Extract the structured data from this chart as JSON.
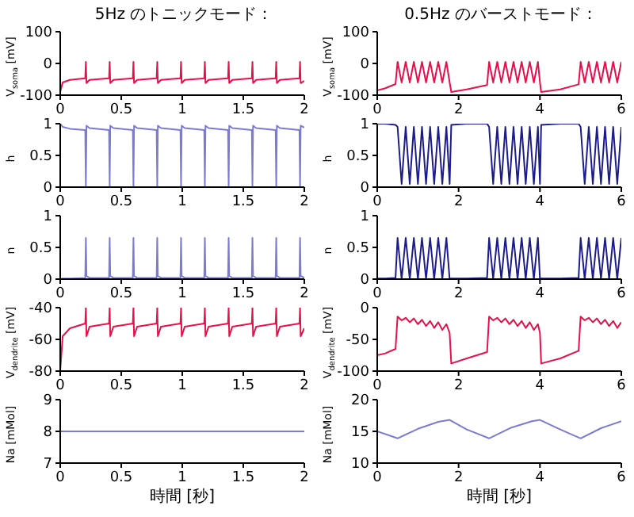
{
  "chart_data": [
    {
      "type": "line",
      "title": "5Hz のトニックモード：",
      "ylabel": "V$_{soma}$ [mV]",
      "color": "#e8104a",
      "xlim": [
        0,
        2
      ],
      "xticks": [
        0,
        0.5,
        1,
        1.5,
        2
      ],
      "ylim": [
        -100,
        100
      ],
      "yticks": [
        -100,
        0,
        100
      ],
      "x": [
        0,
        0.02,
        0.08,
        0.205,
        0.21,
        0.215,
        0.24,
        0.4,
        0.405,
        0.41,
        0.435,
        0.595,
        0.6,
        0.605,
        0.63,
        0.79,
        0.795,
        0.8,
        0.825,
        0.985,
        0.99,
        0.995,
        1.02,
        1.18,
        1.185,
        1.19,
        1.215,
        1.375,
        1.38,
        1.385,
        1.41,
        1.57,
        1.575,
        1.58,
        1.605,
        1.765,
        1.77,
        1.775,
        1.8,
        1.96,
        1.965,
        1.97,
        2.0
      ],
      "values": [
        -90,
        -60,
        -52,
        -47,
        5,
        -62,
        -52,
        -47,
        5,
        -62,
        -52,
        -47,
        5,
        -62,
        -52,
        -47,
        5,
        -62,
        -52,
        -47,
        5,
        -62,
        -52,
        -47,
        5,
        -62,
        -52,
        -47,
        5,
        -62,
        -52,
        -47,
        5,
        -62,
        -52,
        -47,
        5,
        -62,
        -52,
        -47,
        5,
        -62,
        -55
      ]
    },
    {
      "type": "line",
      "title": "0.5Hz のバーストモード：",
      "ylabel": "V$_{soma}$ [mV]",
      "color": "#e8104a",
      "xlim": [
        0,
        6
      ],
      "xticks": [
        0,
        2,
        4,
        6
      ],
      "ylim": [
        -100,
        100
      ],
      "yticks": [
        -100,
        0,
        100
      ],
      "x": [
        0,
        0.2,
        0.45,
        0.5,
        0.6,
        0.7,
        0.8,
        0.9,
        1.0,
        1.1,
        1.2,
        1.3,
        1.4,
        1.5,
        1.6,
        1.7,
        1.78,
        1.82,
        2.2,
        2.7,
        2.75,
        2.85,
        2.95,
        3.05,
        3.15,
        3.25,
        3.35,
        3.45,
        3.55,
        3.65,
        3.75,
        3.85,
        3.95,
        4.0,
        4.03,
        4.5,
        4.95,
        5.0,
        5.1,
        5.2,
        5.3,
        5.4,
        5.5,
        5.6,
        5.7,
        5.8,
        5.9,
        6.0
      ],
      "values": [
        -85,
        -78,
        -65,
        5,
        -60,
        5,
        -60,
        5,
        -60,
        5,
        -60,
        5,
        -60,
        5,
        -60,
        5,
        -60,
        -90,
        -82,
        -68,
        5,
        -60,
        5,
        -60,
        5,
        -60,
        5,
        -60,
        5,
        -60,
        5,
        -60,
        5,
        -60,
        -90,
        -82,
        -66,
        5,
        -60,
        5,
        -60,
        5,
        -60,
        5,
        -60,
        5,
        -60,
        5
      ]
    },
    {
      "type": "line",
      "ylabel": "h",
      "color": "#7b7bd6",
      "xlim": [
        0,
        2
      ],
      "xticks": [
        0,
        0.5,
        1,
        1.5,
        2
      ],
      "ylim": [
        0,
        1
      ],
      "yticks": [
        0,
        0.5,
        1
      ],
      "x": [
        0,
        0.02,
        0.08,
        0.205,
        0.21,
        0.215,
        0.24,
        0.4,
        0.405,
        0.41,
        0.435,
        0.595,
        0.6,
        0.605,
        0.63,
        0.79,
        0.795,
        0.8,
        0.825,
        0.985,
        0.99,
        0.995,
        1.02,
        1.18,
        1.185,
        1.19,
        1.215,
        1.375,
        1.38,
        1.385,
        1.41,
        1.57,
        1.575,
        1.58,
        1.605,
        1.765,
        1.77,
        1.775,
        1.8,
        1.96,
        1.965,
        1.97,
        2.0
      ],
      "values": [
        1,
        0.95,
        0.92,
        0.9,
        0.02,
        0.97,
        0.93,
        0.9,
        0.02,
        0.97,
        0.93,
        0.9,
        0.02,
        0.97,
        0.93,
        0.9,
        0.02,
        0.97,
        0.93,
        0.9,
        0.02,
        0.97,
        0.93,
        0.9,
        0.02,
        0.97,
        0.93,
        0.9,
        0.02,
        0.97,
        0.93,
        0.9,
        0.02,
        0.97,
        0.93,
        0.9,
        0.02,
        0.97,
        0.93,
        0.9,
        0.02,
        0.97,
        0.94
      ]
    },
    {
      "type": "line",
      "ylabel": "h",
      "color": "#1c1c8c",
      "xlim": [
        0,
        6
      ],
      "xticks": [
        0,
        2,
        4,
        6
      ],
      "ylim": [
        0,
        1
      ],
      "yticks": [
        0,
        0.5,
        1
      ],
      "x": [
        0,
        0.2,
        0.45,
        0.5,
        0.6,
        0.7,
        0.8,
        0.9,
        1.0,
        1.1,
        1.2,
        1.3,
        1.4,
        1.5,
        1.6,
        1.7,
        1.78,
        1.82,
        2.2,
        2.7,
        2.75,
        2.85,
        2.95,
        3.05,
        3.15,
        3.25,
        3.35,
        3.45,
        3.55,
        3.65,
        3.75,
        3.85,
        3.95,
        4.0,
        4.03,
        4.5,
        4.95,
        5.0,
        5.1,
        5.2,
        5.3,
        5.4,
        5.5,
        5.6,
        5.7,
        5.8,
        5.9,
        6.0
      ],
      "values": [
        1,
        1,
        0.98,
        0.95,
        0.05,
        0.95,
        0.05,
        0.95,
        0.05,
        0.95,
        0.05,
        0.95,
        0.05,
        0.95,
        0.05,
        0.95,
        0.05,
        0.98,
        1,
        1,
        0.95,
        0.05,
        0.95,
        0.05,
        0.95,
        0.05,
        0.95,
        0.05,
        0.95,
        0.05,
        0.95,
        0.05,
        0.95,
        0.05,
        0.98,
        1,
        1,
        0.95,
        0.05,
        0.95,
        0.05,
        0.95,
        0.05,
        0.95,
        0.05,
        0.95,
        0.05,
        0.95
      ]
    },
    {
      "type": "line",
      "ylabel": "n",
      "color": "#7b7bd6",
      "xlim": [
        0,
        2
      ],
      "xticks": [
        0,
        0.5,
        1,
        1.5,
        2
      ],
      "ylim": [
        0,
        1
      ],
      "yticks": [
        0,
        0.5,
        1
      ],
      "x": [
        0,
        0.02,
        0.08,
        0.205,
        0.21,
        0.215,
        0.24,
        0.4,
        0.405,
        0.41,
        0.435,
        0.595,
        0.6,
        0.605,
        0.63,
        0.79,
        0.795,
        0.8,
        0.825,
        0.985,
        0.99,
        0.995,
        1.02,
        1.18,
        1.185,
        1.19,
        1.215,
        1.375,
        1.38,
        1.385,
        1.41,
        1.57,
        1.575,
        1.58,
        1.605,
        1.765,
        1.77,
        1.775,
        1.8,
        1.96,
        1.965,
        1.97,
        2.0
      ],
      "values": [
        0,
        0.01,
        0.01,
        0.02,
        0.65,
        0.05,
        0.02,
        0.02,
        0.65,
        0.05,
        0.02,
        0.02,
        0.65,
        0.05,
        0.02,
        0.02,
        0.65,
        0.05,
        0.02,
        0.02,
        0.65,
        0.05,
        0.02,
        0.02,
        0.65,
        0.05,
        0.02,
        0.02,
        0.65,
        0.05,
        0.02,
        0.02,
        0.65,
        0.05,
        0.02,
        0.02,
        0.65,
        0.05,
        0.02,
        0.02,
        0.65,
        0.05,
        0.02
      ]
    },
    {
      "type": "line",
      "ylabel": "n",
      "color": "#1c1c8c",
      "xlim": [
        0,
        6
      ],
      "xticks": [
        0,
        2,
        4,
        6
      ],
      "ylim": [
        0,
        1
      ],
      "yticks": [
        0,
        0.5,
        1
      ],
      "x": [
        0,
        0.2,
        0.45,
        0.5,
        0.6,
        0.7,
        0.8,
        0.9,
        1.0,
        1.1,
        1.2,
        1.3,
        1.4,
        1.5,
        1.6,
        1.7,
        1.78,
        1.82,
        2.2,
        2.7,
        2.75,
        2.85,
        2.95,
        3.05,
        3.15,
        3.25,
        3.35,
        3.45,
        3.55,
        3.65,
        3.75,
        3.85,
        3.95,
        4.0,
        4.03,
        4.5,
        4.95,
        5.0,
        5.1,
        5.2,
        5.3,
        5.4,
        5.5,
        5.6,
        5.7,
        5.8,
        5.9,
        6.0
      ],
      "values": [
        0.01,
        0.01,
        0.02,
        0.65,
        0,
        0.65,
        0,
        0.65,
        0,
        0.65,
        0,
        0.65,
        0,
        0.65,
        0,
        0.65,
        0,
        0.01,
        0.01,
        0.02,
        0.65,
        0,
        0.65,
        0,
        0.65,
        0,
        0.65,
        0,
        0.65,
        0,
        0.65,
        0,
        0.65,
        0,
        0.01,
        0.01,
        0.02,
        0.65,
        0,
        0.65,
        0,
        0.65,
        0,
        0.65,
        0,
        0.65,
        0,
        0.65
      ]
    },
    {
      "type": "line",
      "ylabel": "V$_{dendrite}$ [mV]",
      "color": "#e8104a",
      "xlim": [
        0,
        2
      ],
      "xticks": [
        0,
        0.5,
        1,
        1.5,
        2
      ],
      "ylim": [
        -80,
        -40
      ],
      "yticks": [
        -80,
        -60,
        -40
      ],
      "x": [
        0,
        0.02,
        0.08,
        0.205,
        0.21,
        0.215,
        0.24,
        0.4,
        0.405,
        0.41,
        0.435,
        0.595,
        0.6,
        0.605,
        0.63,
        0.79,
        0.795,
        0.8,
        0.825,
        0.985,
        0.99,
        0.995,
        1.02,
        1.18,
        1.185,
        1.19,
        1.215,
        1.375,
        1.38,
        1.385,
        1.41,
        1.57,
        1.575,
        1.58,
        1.605,
        1.765,
        1.77,
        1.775,
        1.8,
        1.96,
        1.965,
        1.97,
        2.0
      ],
      "values": [
        -80,
        -58,
        -53,
        -50,
        -40,
        -58,
        -52,
        -50,
        -40,
        -58,
        -52,
        -50,
        -40,
        -58,
        -52,
        -50,
        -40,
        -58,
        -52,
        -50,
        -40,
        -58,
        -52,
        -50,
        -40,
        -58,
        -52,
        -50,
        -40,
        -58,
        -52,
        -50,
        -40,
        -58,
        -52,
        -50,
        -40,
        -58,
        -52,
        -50,
        -40,
        -58,
        -53
      ]
    },
    {
      "type": "line",
      "ylabel": "V$_{dendrite}$ [mV]",
      "color": "#e8104a",
      "xlim": [
        0,
        6
      ],
      "xticks": [
        0,
        2,
        4,
        6
      ],
      "ylim": [
        -100,
        0
      ],
      "yticks": [
        -100,
        -50,
        0
      ],
      "x": [
        0,
        0.2,
        0.45,
        0.5,
        0.6,
        0.7,
        0.8,
        0.9,
        1.0,
        1.1,
        1.2,
        1.3,
        1.4,
        1.5,
        1.6,
        1.7,
        1.78,
        1.82,
        2.2,
        2.7,
        2.75,
        2.85,
        2.95,
        3.05,
        3.15,
        3.25,
        3.35,
        3.45,
        3.55,
        3.65,
        3.75,
        3.85,
        3.95,
        4.0,
        4.03,
        4.5,
        4.95,
        5.0,
        5.1,
        5.2,
        5.3,
        5.4,
        5.5,
        5.6,
        5.7,
        5.8,
        5.9,
        6.0
      ],
      "values": [
        -75,
        -72,
        -65,
        -14,
        -20,
        -16,
        -23,
        -17,
        -26,
        -19,
        -29,
        -21,
        -32,
        -23,
        -35,
        -26,
        -40,
        -88,
        -80,
        -70,
        -14,
        -20,
        -16,
        -23,
        -17,
        -26,
        -19,
        -29,
        -21,
        -32,
        -23,
        -35,
        -26,
        -40,
        -88,
        -80,
        -68,
        -14,
        -20,
        -16,
        -23,
        -17,
        -26,
        -19,
        -29,
        -21,
        -32,
        -23
      ]
    },
    {
      "type": "line",
      "xlabel": "時間 [秒]",
      "ylabel": "Na [mMol]",
      "color": "#7b7bd6",
      "xlim": [
        0,
        2
      ],
      "xticks": [
        0,
        0.5,
        1,
        1.5,
        2
      ],
      "ylim": [
        7,
        9
      ],
      "yticks": [
        7,
        8,
        9
      ],
      "x": [
        0,
        2
      ],
      "values": [
        8,
        8
      ]
    },
    {
      "type": "line",
      "xlabel": "時間 [秒]",
      "ylabel": "Na [mMol]",
      "color": "#7b7bd6",
      "xlim": [
        0,
        6
      ],
      "xticks": [
        0,
        2,
        4,
        6
      ],
      "ylim": [
        10,
        20
      ],
      "yticks": [
        10,
        15,
        20
      ],
      "x": [
        0,
        0.5,
        1.0,
        1.5,
        1.78,
        2.2,
        2.75,
        3.3,
        3.8,
        4.0,
        4.5,
        5.0,
        5.5,
        6.0
      ],
      "values": [
        15,
        13.9,
        15.4,
        16.5,
        16.8,
        15.3,
        13.9,
        15.6,
        16.6,
        16.8,
        15.3,
        13.9,
        15.5,
        16.6
      ]
    }
  ]
}
